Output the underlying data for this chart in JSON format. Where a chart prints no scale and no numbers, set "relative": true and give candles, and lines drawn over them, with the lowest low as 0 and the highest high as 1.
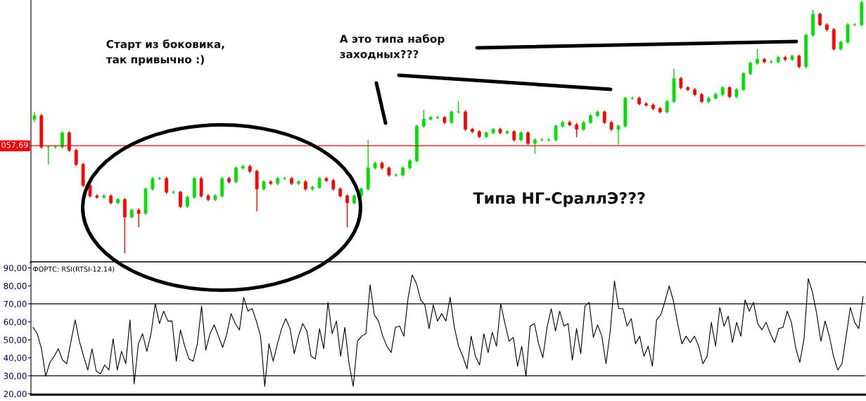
{
  "chart_data": [
    {
      "type": "candlestick",
      "relative": true,
      "categories": [
        null,
        null,
        null,
        null,
        null,
        null,
        null,
        null,
        null,
        null,
        null,
        null,
        null,
        null,
        null,
        null,
        null,
        null,
        null,
        null,
        null,
        null,
        null,
        null,
        null,
        null,
        null,
        null,
        null,
        null,
        null,
        null,
        null,
        null,
        null,
        null,
        null,
        null,
        null,
        null,
        null,
        null,
        null,
        null,
        null,
        null,
        null,
        null,
        null,
        null,
        null,
        null,
        null,
        null,
        null,
        null,
        null,
        null,
        null,
        null,
        null,
        null,
        null,
        null,
        null,
        null,
        null,
        null,
        null,
        null,
        null,
        null,
        null,
        null,
        null,
        null,
        null,
        null,
        null,
        null,
        null,
        null,
        null,
        null,
        null,
        null,
        null,
        null,
        null,
        null,
        null,
        null,
        null,
        null,
        null,
        null,
        null,
        null,
        null,
        null,
        null,
        null,
        null,
        null,
        null,
        null,
        null,
        null,
        null,
        null,
        null,
        null,
        null,
        null,
        null,
        null,
        null,
        null,
        null,
        null
      ],
      "ohlc": [
        [
          0.531,
          0.56,
          0.518,
          0.545
        ],
        [
          0.545,
          0.552,
          0.414,
          0.421
        ],
        [
          0.421,
          0.427,
          0.352,
          0.421
        ],
        [
          0.421,
          0.427,
          0.414,
          0.421
        ],
        [
          0.421,
          0.483,
          0.414,
          0.477
        ],
        [
          0.477,
          0.483,
          0.401,
          0.408
        ],
        [
          0.408,
          0.414,
          0.345,
          0.352
        ],
        [
          0.352,
          0.358,
          0.262,
          0.269
        ],
        [
          0.269,
          0.275,
          0.221,
          0.227
        ],
        [
          0.227,
          0.234,
          0.216,
          0.222
        ],
        [
          0.222,
          0.234,
          0.216,
          0.227
        ],
        [
          0.227,
          0.234,
          0.194,
          0.2
        ],
        [
          0.2,
          0.219,
          0.194,
          0.213
        ],
        [
          0.213,
          0.219,
          0,
          0.144
        ],
        [
          0.144,
          0.178,
          0.138,
          0.171
        ],
        [
          0.171,
          0.178,
          0.103,
          0.158
        ],
        [
          0.158,
          0.261,
          0.152,
          0.255
        ],
        [
          0.255,
          0.303,
          0.248,
          0.296
        ],
        [
          0.296,
          0.303,
          0.29,
          0.296
        ],
        [
          0.296,
          0.303,
          0.235,
          0.242
        ],
        [
          0.242,
          0.248,
          0.235,
          0.242
        ],
        [
          0.242,
          0.248,
          0.179,
          0.186
        ],
        [
          0.186,
          0.229,
          0.179,
          0.222
        ],
        [
          0.222,
          0.303,
          0.216,
          0.296
        ],
        [
          0.296,
          0.303,
          0.221,
          0.227
        ],
        [
          0.227,
          0.234,
          0.206,
          0.213
        ],
        [
          0.213,
          0.234,
          0.206,
          0.227
        ],
        [
          0.227,
          0.303,
          0.221,
          0.296
        ],
        [
          0.296,
          0.303,
          0.277,
          0.283
        ],
        [
          0.283,
          0.344,
          0.277,
          0.338
        ],
        [
          0.338,
          0.351,
          0.331,
          0.344
        ],
        [
          0.344,
          0.351,
          0.318,
          0.325
        ],
        [
          0.325,
          0.331,
          0.166,
          0.255
        ],
        [
          0.255,
          0.29,
          0.248,
          0.283
        ],
        [
          0.283,
          0.29,
          0.27,
          0.277
        ],
        [
          0.277,
          0.303,
          0.27,
          0.296
        ],
        [
          0.296,
          0.303,
          0.29,
          0.296
        ],
        [
          0.296,
          0.303,
          0.27,
          0.277
        ],
        [
          0.277,
          0.29,
          0.27,
          0.283
        ],
        [
          0.283,
          0.29,
          0.248,
          0.255
        ],
        [
          0.255,
          0.268,
          0.248,
          0.261
        ],
        [
          0.261,
          0.303,
          0.255,
          0.296
        ],
        [
          0.296,
          0.303,
          0.282,
          0.288
        ],
        [
          0.288,
          0.295,
          0.248,
          0.255
        ],
        [
          0.255,
          0.261,
          0.221,
          0.227
        ],
        [
          0.227,
          0.234,
          0.103,
          0.2
        ],
        [
          0.2,
          0.234,
          0.194,
          0.227
        ],
        [
          0.227,
          0.261,
          0.221,
          0.255
        ],
        [
          0.255,
          0.449,
          0.248,
          0.338
        ],
        [
          0.338,
          0.364,
          0.331,
          0.357
        ],
        [
          0.357,
          0.364,
          0.331,
          0.338
        ],
        [
          0.338,
          0.344,
          0.304,
          0.31
        ],
        [
          0.31,
          0.317,
          0.304,
          0.31
        ],
        [
          0.31,
          0.344,
          0.304,
          0.338
        ],
        [
          0.338,
          0.373,
          0.331,
          0.366
        ],
        [
          0.366,
          0.51,
          0.36,
          0.504
        ],
        [
          0.504,
          0.568,
          0.497,
          0.531
        ],
        [
          0.531,
          0.544,
          0.525,
          0.538
        ],
        [
          0.538,
          0.544,
          0.531,
          0.538
        ],
        [
          0.538,
          0.544,
          0.512,
          0.518
        ],
        [
          0.518,
          0.566,
          0.512,
          0.56
        ],
        [
          0.56,
          0.601,
          0.553,
          0.56
        ],
        [
          0.56,
          0.566,
          0.484,
          0.491
        ],
        [
          0.491,
          0.497,
          0.475,
          0.482
        ],
        [
          0.482,
          0.488,
          0.456,
          0.462
        ],
        [
          0.462,
          0.483,
          0.456,
          0.477
        ],
        [
          0.477,
          0.497,
          0.47,
          0.491
        ],
        [
          0.491,
          0.497,
          0.47,
          0.477
        ],
        [
          0.477,
          0.488,
          0.47,
          0.482
        ],
        [
          0.482,
          0.488,
          0.443,
          0.449
        ],
        [
          0.449,
          0.483,
          0.443,
          0.477
        ],
        [
          0.477,
          0.483,
          0.429,
          0.435
        ],
        [
          0.435,
          0.456,
          0.394,
          0.449
        ],
        [
          0.449,
          0.456,
          0.443,
          0.449
        ],
        [
          0.449,
          0.456,
          0.443,
          0.449
        ],
        [
          0.449,
          0.51,
          0.443,
          0.504
        ],
        [
          0.504,
          0.525,
          0.497,
          0.518
        ],
        [
          0.518,
          0.525,
          0.503,
          0.509
        ],
        [
          0.509,
          0.516,
          0.46,
          0.491
        ],
        [
          0.491,
          0.525,
          0.484,
          0.518
        ],
        [
          0.518,
          0.552,
          0.512,
          0.545
        ],
        [
          0.545,
          0.566,
          0.539,
          0.56
        ],
        [
          0.56,
          0.566,
          0.512,
          0.518
        ],
        [
          0.518,
          0.525,
          0.484,
          0.491
        ],
        [
          0.491,
          0.51,
          0.43,
          0.504
        ],
        [
          0.504,
          0.621,
          0.497,
          0.614
        ],
        [
          0.614,
          0.621,
          0.608,
          0.614
        ],
        [
          0.614,
          0.621,
          0.586,
          0.592
        ],
        [
          0.592,
          0.599,
          0.581,
          0.587
        ],
        [
          0.587,
          0.594,
          0.566,
          0.573
        ],
        [
          0.573,
          0.579,
          0.553,
          0.56
        ],
        [
          0.56,
          0.608,
          0.553,
          0.601
        ],
        [
          0.601,
          0.731,
          0.595,
          0.692
        ],
        [
          0.692,
          0.699,
          0.649,
          0.656
        ],
        [
          0.656,
          0.662,
          0.642,
          0.648
        ],
        [
          0.648,
          0.655,
          0.622,
          0.629
        ],
        [
          0.629,
          0.635,
          0.595,
          0.601
        ],
        [
          0.601,
          0.621,
          0.595,
          0.614
        ],
        [
          0.614,
          0.635,
          0.608,
          0.629
        ],
        [
          0.629,
          0.662,
          0.622,
          0.656
        ],
        [
          0.656,
          0.662,
          0.614,
          0.621
        ],
        [
          0.621,
          0.655,
          0.614,
          0.648
        ],
        [
          0.648,
          0.718,
          0.642,
          0.712
        ],
        [
          0.712,
          0.76,
          0.705,
          0.753
        ],
        [
          0.753,
          0.809,
          0.747,
          0.768
        ],
        [
          0.768,
          0.774,
          0.752,
          0.758
        ],
        [
          0.758,
          0.765,
          0.752,
          0.758
        ],
        [
          0.758,
          0.782,
          0.752,
          0.775
        ],
        [
          0.775,
          0.782,
          0.761,
          0.768
        ],
        [
          0.768,
          0.787,
          0.761,
          0.781
        ],
        [
          0.781,
          0.787,
          0.732,
          0.739
        ],
        [
          0.739,
          0.87,
          0.732,
          0.864
        ],
        [
          0.864,
          0.964,
          0.857,
          0.947
        ],
        [
          0.947,
          0.953,
          0.899,
          0.905
        ],
        [
          0.905,
          0.912,
          0.879,
          0.886
        ],
        [
          0.886,
          0.892,
          0.803,
          0.809
        ],
        [
          0.809,
          0.843,
          0.803,
          0.836
        ],
        [
          0.836,
          0.912,
          0.83,
          0.905
        ],
        [
          0.905,
          0.912,
          0.899,
          0.905
        ],
        [
          0.905,
          1,
          0.899,
          0.994
        ]
      ],
      "ref_lines": [
        {
          "axis": "y",
          "value": 0.426,
          "color": "#ff0000"
        }
      ],
      "annotations": [
        "Старт из боковика,\nтак привычно :)",
        "А это типа набор\nзаходных???",
        "Типа НГ-СраллЭ???",
        {
          "text": "057,69",
          "y": 0.426
        }
      ],
      "tick_labels": false
    },
    {
      "type": "line",
      "title": "ФОРТС: RSI(RTSI-12.14)",
      "categories": [
        null,
        null,
        null,
        null,
        null,
        null,
        null,
        null,
        null,
        null,
        null,
        null,
        null,
        null,
        null,
        null,
        null,
        null,
        null,
        null,
        null,
        null,
        null,
        null,
        null,
        null,
        null,
        null,
        null,
        null,
        null,
        null,
        null,
        null,
        null,
        null,
        null,
        null,
        null,
        null,
        null,
        null,
        null,
        null,
        null,
        null,
        null,
        null,
        null,
        null,
        null,
        null,
        null,
        null,
        null,
        null,
        null,
        null,
        null,
        null,
        null,
        null,
        null,
        null,
        null,
        null,
        null,
        null,
        null,
        null,
        null,
        null,
        null,
        null,
        null,
        null,
        null,
        null,
        null,
        null,
        null,
        null,
        null,
        null,
        null,
        null,
        null,
        null,
        null,
        null,
        null,
        null,
        null,
        null,
        null,
        null,
        null,
        null,
        null,
        null,
        null,
        null,
        null,
        null,
        null,
        null,
        null,
        null,
        null,
        null,
        null,
        null,
        null,
        null,
        null,
        null,
        null,
        null,
        null,
        null,
        null,
        null,
        null,
        null,
        null,
        null,
        null,
        null,
        null,
        null,
        null,
        null,
        null,
        null,
        null,
        null,
        null,
        null,
        null,
        null,
        null,
        null,
        null,
        null,
        null,
        null,
        null,
        null,
        null,
        null,
        null,
        null,
        null,
        null,
        null,
        null,
        null,
        null,
        null,
        null,
        null,
        null,
        null,
        null,
        null,
        null,
        null,
        null,
        null,
        null,
        null,
        null,
        null,
        null,
        null,
        null,
        null,
        null,
        null,
        null,
        null,
        null,
        null,
        null,
        null,
        null,
        null,
        null,
        null,
        null,
        null,
        null,
        null,
        null,
        null,
        null,
        null,
        null
      ],
      "series": [
        {
          "color": "#000000",
          "values": [
            56.9,
            53.4,
            45,
            29.7,
            37.4,
            40.8,
            45,
            38.7,
            36.7,
            49.2,
            61,
            49.2,
            40.8,
            33.2,
            45,
            32.5,
            31.1,
            36,
            33.2,
            50.6,
            33.2,
            43.6,
            36.7,
            61,
            25.5,
            47.8,
            53.4,
            43.6,
            53.4,
            70.1,
            59,
            65.9,
            60.4,
            60.4,
            38.1,
            55.5,
            46.4,
            39.4,
            38.1,
            47.8,
            68.7,
            44.3,
            53.4,
            58.3,
            52,
            45.7,
            53.4,
            64.5,
            59,
            55.5,
            73.6,
            65.9,
            67.3,
            60.4,
            52,
            24.1,
            47.8,
            38.1,
            47.8,
            56.2,
            61.7,
            56.2,
            42.2,
            52,
            59,
            54.8,
            40.8,
            39.4,
            56.2,
            45,
            70.8,
            53.4,
            60.4,
            40.8,
            56.9,
            36.7,
            24.1,
            49.2,
            52,
            53.4,
            80.6,
            63.8,
            60.4,
            52,
            46.4,
            42.9,
            56.9,
            57.6,
            52,
            72.9,
            86.1,
            81.3,
            72.2,
            69.4,
            56.2,
            69.4,
            60.4,
            64.5,
            60.4,
            73.6,
            56.9,
            46.4,
            40.8,
            33.9,
            52,
            40.8,
            36,
            53.4,
            42.9,
            54.2,
            46.4,
            70.1,
            59,
            49.2,
            51.3,
            35.3,
            46.4,
            29.7,
            57.6,
            59,
            47.8,
            40.1,
            56.9,
            67.3,
            54.8,
            65.9,
            57.6,
            59,
            38.7,
            56.2,
            42.2,
            68.7,
            70.8,
            51.3,
            58.3,
            52,
            36.7,
            54.8,
            82.7,
            67.3,
            67.3,
            57.6,
            61.7,
            47.8,
            52,
            40.8,
            46.4,
            35.3,
            61.1,
            63.8,
            71.5,
            79.9,
            71.5,
            59,
            47.8,
            52,
            48.5,
            52,
            46.4,
            36.7,
            40.8,
            59.7,
            46.4,
            68,
            57.6,
            63.1,
            48.5,
            59.7,
            52,
            72.2,
            65.9,
            70.8,
            59,
            55.5,
            59.7,
            53.4,
            48.5,
            56.2,
            56.9,
            65.9,
            59.7,
            45.7,
            37.4,
            50.6,
            84,
            76.4,
            64.5,
            49.2,
            60.4,
            52,
            40.8,
            33.2,
            36.7,
            52,
            68,
            59.7,
            56.2,
            74
          ]
        }
      ],
      "ylim": [
        19.5,
        93
      ],
      "yticks": [
        {
          "value": 20,
          "label": "20,00"
        },
        {
          "value": 30,
          "label": "30,00"
        },
        {
          "value": 40,
          "label": "40,00"
        },
        {
          "value": 50,
          "label": "50,00"
        },
        {
          "value": 60,
          "label": "60,00"
        },
        {
          "value": 70,
          "label": "70,00"
        },
        {
          "value": 80,
          "label": "80,00"
        },
        {
          "value": 90,
          "label": "90,00"
        }
      ],
      "ref_lines": [
        {
          "axis": "y",
          "value": 70,
          "color": "#000000"
        },
        {
          "axis": "y",
          "value": 30,
          "color": "#000000"
        }
      ],
      "tick_labels": "y"
    }
  ]
}
